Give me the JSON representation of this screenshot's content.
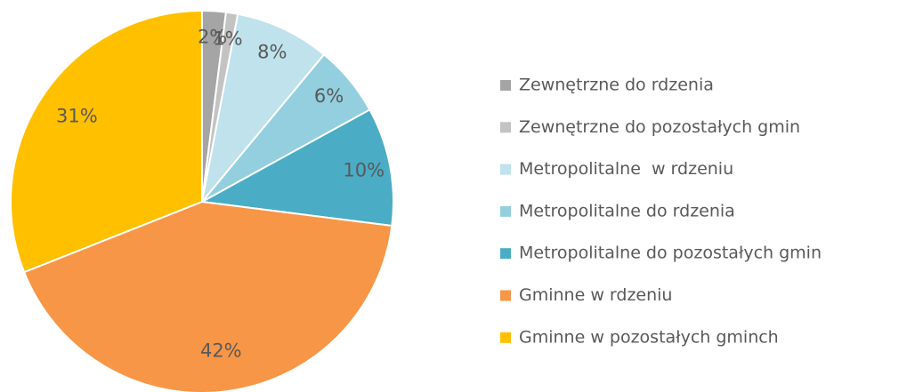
{
  "chart_data": {
    "type": "pie",
    "categories": [
      "Zewnętrzne do rdzenia",
      "Zewnętrzne do pozostałych gmin",
      "Metropolitalne  w rdzeniu",
      "Metropolitalne do rdzenia",
      "Metropolitalne do pozostałych gmin",
      "Gminne w rdzeniu",
      "Gminne w pozostałych gminch"
    ],
    "values": [
      2,
      1,
      8,
      6,
      10,
      42,
      31
    ],
    "value_labels": [
      "2%",
      "1%",
      "8%",
      "6%",
      "10%",
      "42%",
      "31%"
    ],
    "colors": [
      "#a5a5a5",
      "#c3c3c3",
      "#bfe2ec",
      "#93cfde",
      "#4aacc5",
      "#f79646",
      "#ffc000"
    ],
    "legend": "right"
  }
}
